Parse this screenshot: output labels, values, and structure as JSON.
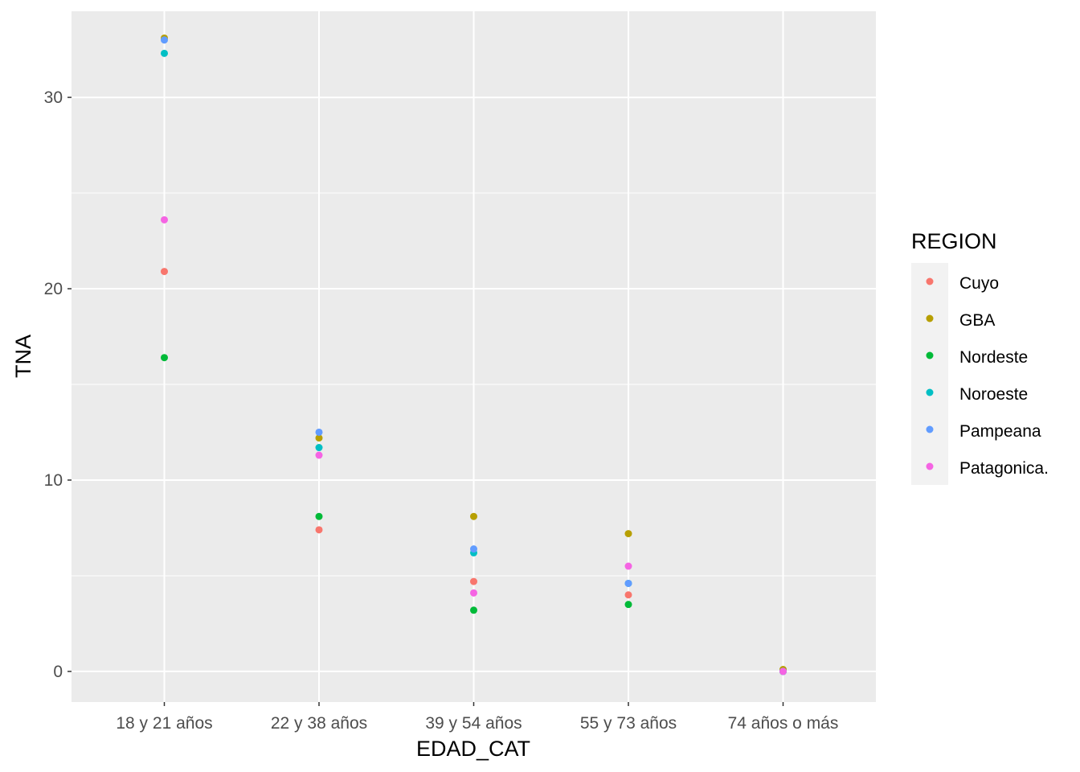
{
  "chart_data": {
    "type": "scatter",
    "title": "",
    "xlabel": "EDAD_CAT",
    "ylabel": "TNA",
    "categories": [
      "18 y 21 años",
      "22 y 38 años",
      "39 y 54 años",
      "55 y 73 años",
      "74 años o más"
    ],
    "ylim": [
      -1.6,
      34.5
    ],
    "yticks": [
      0,
      10,
      20,
      30
    ],
    "grid": true,
    "legend": {
      "title": "REGION",
      "placement": "right",
      "entries": [
        "Cuyo",
        "GBA",
        "Nordeste",
        "Noroeste",
        "Pampeana",
        "Patagonica."
      ]
    },
    "series": [
      {
        "name": "Cuyo",
        "color": "#F8766D",
        "values": [
          20.9,
          7.4,
          4.7,
          4.0,
          0.0
        ]
      },
      {
        "name": "GBA",
        "color": "#B79F00",
        "values": [
          33.1,
          12.2,
          8.1,
          7.2,
          0.1
        ]
      },
      {
        "name": "Nordeste",
        "color": "#00BA38",
        "values": [
          16.4,
          8.1,
          3.2,
          3.5,
          0.0
        ]
      },
      {
        "name": "Noroeste",
        "color": "#00BFC4",
        "values": [
          32.3,
          11.7,
          6.2,
          4.6,
          0.0
        ]
      },
      {
        "name": "Pampeana",
        "color": "#619CFF",
        "values": [
          33.0,
          12.5,
          6.4,
          4.6,
          0.0
        ]
      },
      {
        "name": "Patagonica.",
        "color": "#F564E3",
        "values": [
          23.6,
          11.3,
          4.1,
          5.5,
          0.0
        ]
      }
    ]
  }
}
